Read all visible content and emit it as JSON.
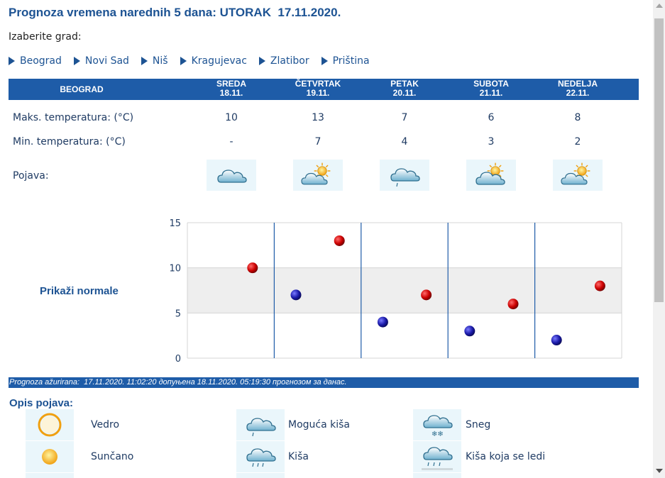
{
  "title": "Prognoza vremena narednih 5 dana: UTORAK  17.11.2020.",
  "city_prompt": "Izaberite grad:",
  "cities": [
    "Beograd",
    "Novi Sad",
    "Niš",
    "Kragujevac",
    "Zlatibor",
    "Priština"
  ],
  "header": {
    "city": "BEOGRAD",
    "days": [
      {
        "name": "SREDA",
        "date": "18.11."
      },
      {
        "name": "ČETVRTAK",
        "date": "19.11."
      },
      {
        "name": "PETAK",
        "date": "20.11."
      },
      {
        "name": "SUBOTA",
        "date": "21.11."
      },
      {
        "name": "NEDELJA",
        "date": "22.11."
      }
    ]
  },
  "rows": {
    "max_label": "Maks. temperatura: (°C)",
    "min_label": "Min. temperatura: (°C)",
    "phen_label": "Pojava:",
    "max": [
      "10",
      "13",
      "7",
      "6",
      "8"
    ],
    "min": [
      "-",
      "7",
      "4",
      "3",
      "2"
    ],
    "icons": [
      "cloud-icon",
      "partly-sunny-icon",
      "light-rain-cloud-icon",
      "sun-behind-cloud-icon",
      "partly-sunny-icon"
    ]
  },
  "normals_link": "Prikaži normale",
  "chart_data": {
    "type": "scatter",
    "title": "",
    "xlabel": "",
    "ylabel": "",
    "ylim": [
      0,
      15
    ],
    "yticks": [
      0,
      5,
      10,
      15
    ],
    "normal_band": [
      5,
      10
    ],
    "grid": true,
    "series": [
      {
        "name": "",
        "color": "#cc0000",
        "values": [
          10,
          13,
          7,
          6,
          8
        ]
      },
      {
        "name": "",
        "color": "#1a1aa8",
        "values": [
          null,
          7,
          4,
          3,
          2
        ]
      }
    ]
  },
  "update_text": "Prognoza ažurirana:  17.11.2020. 11:02:20 допуњена 18.11.2020. 05:19:30 прогнозом за данас.",
  "legend": {
    "title": "Opis pojava:",
    "items": [
      {
        "icon": "sun-outline-icon",
        "label": "Vedro"
      },
      {
        "icon": "light-rain-cloud-icon",
        "label": "Moguća kiša"
      },
      {
        "icon": "snow-cloud-icon",
        "label": "Sneg"
      },
      {
        "icon": "sun-icon",
        "label": "Sunčano"
      },
      {
        "icon": "rain-cloud-icon",
        "label": "Kiša"
      },
      {
        "icon": "freezing-rain-cloud-icon",
        "label": "Kiša koja se ledi"
      }
    ]
  },
  "colors": {
    "accent": "#1e5ca8",
    "link": "#1d5393",
    "max_point": "#cc0000",
    "min_point": "#1a1aa8",
    "band": "#eeeeee"
  }
}
